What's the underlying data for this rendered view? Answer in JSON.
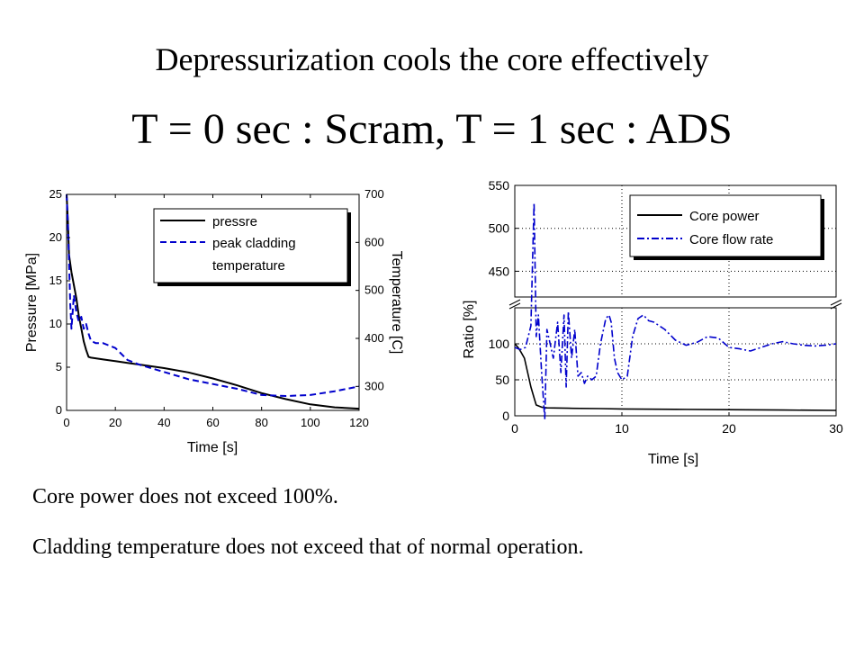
{
  "slide": {
    "subtitle": "Depressurization cools the core effectively",
    "title": "T = 0 sec : Scram, T = 1 sec : ADS",
    "notes": [
      "Core power does not exceed 100%.",
      "Cladding temperature does not exceed that of normal operation."
    ]
  },
  "colors": {
    "black_series": "#000000",
    "blue_series": "#0000cc",
    "grid": "#000000"
  },
  "chart_data": [
    {
      "type": "line",
      "xlabel": "Time [s]",
      "ylabel": "Pressure [MPa]",
      "y2label": "Temperature [C]",
      "xlim": [
        0,
        120
      ],
      "ylim": [
        0,
        25
      ],
      "y2lim": [
        250,
        700
      ],
      "xticks": [
        "0",
        "20",
        "40",
        "60",
        "80",
        "100",
        "120"
      ],
      "yticks": [
        "0",
        "5",
        "10",
        "15",
        "20",
        "25"
      ],
      "y2ticks": [
        "300",
        "400",
        "500",
        "600",
        "700"
      ],
      "grid": false,
      "legend_position": "top-right",
      "series": [
        {
          "name": "pressre",
          "axis": "left",
          "style": "solid",
          "color": "#000000",
          "x": [
            0,
            0.5,
            1,
            2,
            3,
            4,
            5,
            6,
            7,
            8,
            9,
            10,
            15,
            20,
            25,
            30,
            40,
            50,
            60,
            70,
            80,
            90,
            100,
            110,
            120
          ],
          "y": [
            25,
            22,
            18,
            16,
            14.5,
            13,
            11,
            9.5,
            8,
            7,
            6.2,
            6.1,
            5.9,
            5.7,
            5.5,
            5.3,
            4.9,
            4.4,
            3.7,
            2.9,
            2.0,
            1.3,
            0.7,
            0.35,
            0.2
          ]
        },
        {
          "name": "peak cladding temperature",
          "axis": "right",
          "style": "dashed",
          "color": "#0000cc",
          "x": [
            0,
            0.5,
            1,
            1.5,
            2,
            3,
            4,
            5,
            6,
            7,
            8,
            9,
            10,
            12,
            15,
            20,
            25,
            30,
            40,
            50,
            60,
            70,
            80,
            90,
            100,
            110,
            120
          ],
          "y": [
            700,
            640,
            560,
            470,
            420,
            490,
            455,
            435,
            445,
            420,
            430,
            410,
            395,
            390,
            390,
            380,
            355,
            345,
            330,
            315,
            305,
            295,
            282,
            280,
            282,
            290,
            300
          ]
        }
      ]
    },
    {
      "type": "line",
      "xlabel": "Time [s]",
      "ylabel": "Ratio [%]",
      "xlim": [
        0,
        30
      ],
      "xticks": [
        "0",
        "10",
        "20",
        "30"
      ],
      "lower_panel": {
        "ylim": [
          0,
          150
        ],
        "yticks": [
          "0",
          "50",
          "100"
        ]
      },
      "upper_panel": {
        "ylim": [
          420,
          550
        ],
        "yticks": [
          "450",
          "500",
          "550"
        ]
      },
      "axis_break": true,
      "grid": true,
      "legend_position": "top-right",
      "series": [
        {
          "name": "Core power",
          "style": "solid",
          "color": "#000000",
          "x": [
            0,
            0.3,
            0.6,
            0.9,
            1.2,
            1.5,
            1.8,
            2.0,
            2.5,
            3,
            5,
            8,
            10,
            15,
            20,
            25,
            30
          ],
          "y": [
            100,
            95,
            88,
            80,
            60,
            40,
            25,
            15,
            12,
            11,
            10.5,
            10,
            9.5,
            9,
            8.5,
            8,
            7.5
          ]
        },
        {
          "name": "Core flow rate",
          "style": "dashdot",
          "color": "#0000cc",
          "x": [
            0,
            0.5,
            1,
            1.5,
            1.8,
            2.0,
            2.2,
            2.5,
            2.8,
            3.0,
            3.3,
            3.6,
            4.0,
            4.3,
            4.6,
            4.8,
            5.0,
            5.3,
            5.6,
            5.9,
            6.2,
            6.5,
            6.8,
            7.2,
            7.6,
            8.0,
            8.5,
            8.8,
            9.0,
            9.3,
            9.6,
            10.0,
            10.5,
            11.0,
            11.5,
            12.0,
            12.5,
            13.0,
            13.5,
            14.0,
            15.0,
            16.0,
            17.0,
            18.0,
            19.0,
            20.0,
            21.0,
            22.0,
            23.0,
            24.0,
            25.0,
            26.0,
            27.0,
            28.0,
            29.0,
            30.0
          ],
          "y": [
            95,
            92,
            95,
            125,
            530,
            110,
            140,
            60,
            -5,
            120,
            100,
            80,
            130,
            60,
            140,
            40,
            145,
            80,
            120,
            55,
            60,
            45,
            55,
            50,
            55,
            100,
            135,
            140,
            130,
            80,
            60,
            50,
            55,
            110,
            135,
            140,
            132,
            130,
            125,
            120,
            105,
            98,
            102,
            110,
            108,
            95,
            93,
            90,
            95,
            100,
            103,
            100,
            98,
            97,
            98,
            100
          ]
        }
      ]
    }
  ]
}
